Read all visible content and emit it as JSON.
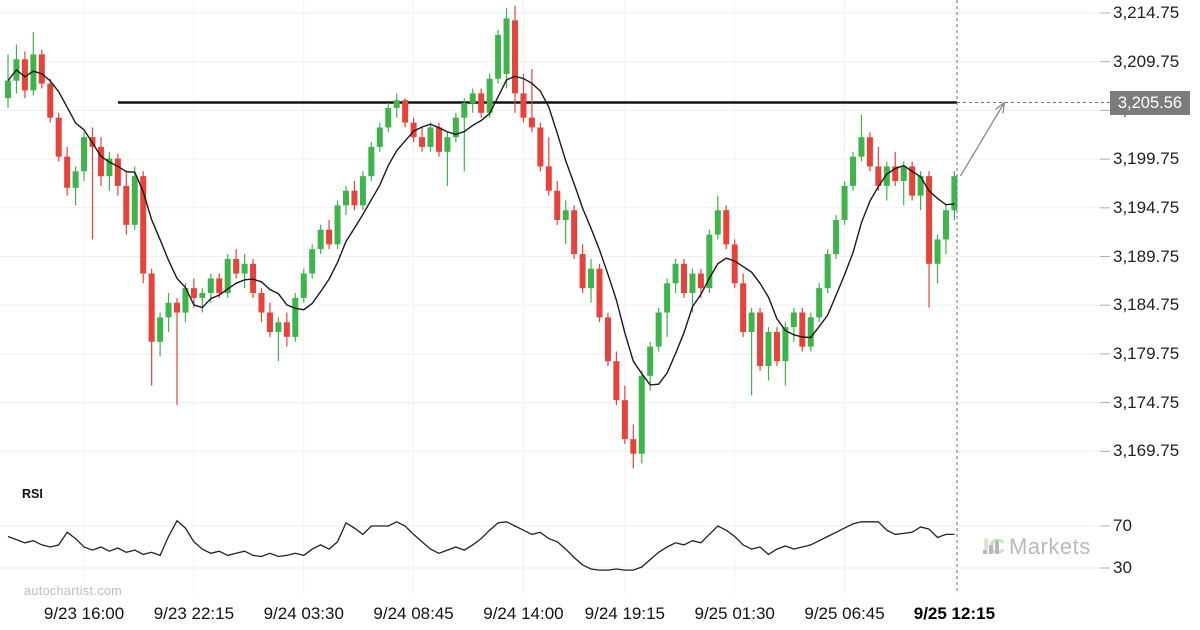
{
  "watermarks": {
    "autochartist": "autochartist.com",
    "icmarkets_ic": "IC",
    "icmarkets_markets": "Markets"
  },
  "indicator_label": "RSI",
  "price_tag": {
    "label": "3,205.56",
    "value": 3205.56
  },
  "chart_data": {
    "type": "candlestick",
    "title": "",
    "legend_position": "none",
    "grid": true,
    "price_axis_ticks": [
      {
        "label": "3,214.75",
        "value": 3214.75
      },
      {
        "label": "3,209.75",
        "value": 3209.75
      },
      {
        "label": "3,204.75",
        "value": 3204.75
      },
      {
        "label": "3,199.75",
        "value": 3199.75
      },
      {
        "label": "3,194.75",
        "value": 3194.75
      },
      {
        "label": "3,189.75",
        "value": 3189.75
      },
      {
        "label": "3,184.75",
        "value": 3184.75
      },
      {
        "label": "3,179.75",
        "value": 3179.75
      },
      {
        "label": "3,174.75",
        "value": 3174.75
      },
      {
        "label": "3,169.75",
        "value": 3169.75
      }
    ],
    "rsi_axis_ticks": [
      {
        "label": "70",
        "value": 70
      },
      {
        "label": "30",
        "value": 30
      }
    ],
    "time_ticks": [
      {
        "label": "9/23 16:00",
        "index": 9,
        "bold": false
      },
      {
        "label": "9/23 22:15",
        "index": 22,
        "bold": false
      },
      {
        "label": "9/24 03:30",
        "index": 35,
        "bold": false
      },
      {
        "label": "9/24 08:45",
        "index": 48,
        "bold": false
      },
      {
        "label": "9/24 14:00",
        "index": 61,
        "bold": false
      },
      {
        "label": "9/24 19:15",
        "index": 73,
        "bold": false
      },
      {
        "label": "9/25 01:30",
        "index": 86,
        "bold": false
      },
      {
        "label": "9/25 06:45",
        "index": 99,
        "bold": false
      },
      {
        "label": "9/25 12:15",
        "index": 112,
        "bold": true
      }
    ],
    "resistance": {
      "value": 3205.56,
      "start_index": 13
    },
    "projection_arrow": {
      "from_index": 112,
      "from_price": 3198.0,
      "to_price": 3205.56
    },
    "ma_period": 7,
    "ylim": [
      3167.5,
      3216.5
    ],
    "rsi_range": [
      0,
      100
    ],
    "colors": {
      "up": "#3db54a",
      "down": "#e9423a",
      "ma": "#1a1a1a",
      "resistance": "#141414",
      "rsi": "#222222",
      "grid_h": "#f6eded",
      "grid_v": "#f2f2f2",
      "tick": "#b0b0b0",
      "dashed": "#6e6e6e",
      "arrow": "#8a8a8a",
      "tag_bg": "#7b7b7b"
    },
    "candles": [
      [
        3206.0,
        3210.5,
        3205.0,
        3207.8
      ],
      [
        3207.8,
        3211.5,
        3206.5,
        3210.0
      ],
      [
        3210.0,
        3210.8,
        3206.0,
        3206.8
      ],
      [
        3206.8,
        3212.8,
        3206.3,
        3210.5
      ],
      [
        3210.5,
        3211.0,
        3207.0,
        3207.5
      ],
      [
        3207.5,
        3208.0,
        3203.5,
        3204.0
      ],
      [
        3204.0,
        3204.5,
        3199.5,
        3200.0
      ],
      [
        3200.0,
        3201.0,
        3196.0,
        3196.8
      ],
      [
        3196.8,
        3199.0,
        3195.0,
        3198.5
      ],
      [
        3198.5,
        3202.5,
        3197.5,
        3202.0
      ],
      [
        3202.0,
        3203.0,
        3191.5,
        3201.0
      ],
      [
        3201.0,
        3202.0,
        3197.0,
        3198.0
      ],
      [
        3198.0,
        3200.5,
        3196.5,
        3199.8
      ],
      [
        3199.8,
        3200.3,
        3196.0,
        3197.0
      ],
      [
        3197.0,
        3198.5,
        3192.0,
        3193.0
      ],
      [
        3193.0,
        3199.0,
        3192.5,
        3198.0
      ],
      [
        3198.0,
        3198.5,
        3187.0,
        3188.0
      ],
      [
        3188.0,
        3188.5,
        3176.5,
        3181.0
      ],
      [
        3181.0,
        3184.0,
        3179.5,
        3183.5
      ],
      [
        3183.5,
        3186.0,
        3182.0,
        3185.0
      ],
      [
        3185.0,
        3185.5,
        3174.5,
        3184.0
      ],
      [
        3184.0,
        3187.0,
        3183.0,
        3186.5
      ],
      [
        3186.5,
        3187.5,
        3184.5,
        3185.5
      ],
      [
        3185.5,
        3186.5,
        3184.0,
        3186.0
      ],
      [
        3186.0,
        3188.0,
        3185.0,
        3187.5
      ],
      [
        3187.5,
        3188.0,
        3185.5,
        3186.0
      ],
      [
        3186.0,
        3190.0,
        3185.5,
        3189.5
      ],
      [
        3189.5,
        3190.5,
        3187.5,
        3188.0
      ],
      [
        3188.0,
        3190.0,
        3186.5,
        3189.0
      ],
      [
        3189.0,
        3189.5,
        3185.5,
        3186.0
      ],
      [
        3186.0,
        3186.5,
        3183.0,
        3184.0
      ],
      [
        3184.0,
        3185.0,
        3181.5,
        3182.0
      ],
      [
        3182.0,
        3183.5,
        3179.0,
        3183.0
      ],
      [
        3183.0,
        3184.0,
        3180.5,
        3181.5
      ],
      [
        3181.5,
        3186.0,
        3181.0,
        3185.5
      ],
      [
        3185.5,
        3188.5,
        3185.0,
        3188.0
      ],
      [
        3188.0,
        3191.0,
        3187.5,
        3190.5
      ],
      [
        3190.5,
        3193.0,
        3190.0,
        3192.5
      ],
      [
        3192.5,
        3193.5,
        3190.5,
        3191.0
      ],
      [
        3191.0,
        3195.5,
        3190.5,
        3195.0
      ],
      [
        3195.0,
        3197.0,
        3194.0,
        3196.5
      ],
      [
        3196.5,
        3197.5,
        3194.5,
        3195.0
      ],
      [
        3195.0,
        3198.5,
        3194.5,
        3198.0
      ],
      [
        3198.0,
        3201.5,
        3197.5,
        3201.0
      ],
      [
        3201.0,
        3203.5,
        3200.5,
        3203.0
      ],
      [
        3203.0,
        3205.5,
        3202.5,
        3205.0
      ],
      [
        3205.0,
        3206.5,
        3204.0,
        3205.8
      ],
      [
        3205.8,
        3206.0,
        3203.0,
        3203.5
      ],
      [
        3203.5,
        3204.0,
        3201.5,
        3202.0
      ],
      [
        3202.0,
        3203.0,
        3200.5,
        3201.0
      ],
      [
        3201.0,
        3203.5,
        3200.5,
        3203.0
      ],
      [
        3203.0,
        3203.5,
        3200.0,
        3200.5
      ],
      [
        3200.5,
        3202.5,
        3197.0,
        3202.0
      ],
      [
        3202.0,
        3204.5,
        3201.5,
        3204.0
      ],
      [
        3204.0,
        3206.0,
        3198.5,
        3205.5
      ],
      [
        3205.5,
        3207.0,
        3204.5,
        3206.5
      ],
      [
        3206.5,
        3207.0,
        3204.0,
        3204.5
      ],
      [
        3204.5,
        3208.5,
        3204.0,
        3208.0
      ],
      [
        3208.0,
        3213.0,
        3207.5,
        3212.5
      ],
      [
        3208.5,
        3215.3,
        3207.0,
        3214.2
      ],
      [
        3214.0,
        3215.5,
        3204.5,
        3206.5
      ],
      [
        3206.5,
        3208.5,
        3203.5,
        3204.0
      ],
      [
        3204.0,
        3209.0,
        3202.5,
        3203.0
      ],
      [
        3203.0,
        3203.5,
        3198.5,
        3199.0
      ],
      [
        3199.0,
        3202.0,
        3196.0,
        3196.5
      ],
      [
        3196.5,
        3197.5,
        3193.0,
        3193.5
      ],
      [
        3193.5,
        3195.5,
        3191.0,
        3194.5
      ],
      [
        3194.5,
        3195.0,
        3189.5,
        3190.0
      ],
      [
        3190.0,
        3191.0,
        3186.0,
        3186.5
      ],
      [
        3186.5,
        3189.5,
        3185.0,
        3188.5
      ],
      [
        3188.5,
        3189.0,
        3183.0,
        3183.5
      ],
      [
        3183.5,
        3184.0,
        3178.5,
        3179.0
      ],
      [
        3179.0,
        3180.0,
        3174.5,
        3175.0
      ],
      [
        3175.0,
        3176.5,
        3170.5,
        3171.0
      ],
      [
        3171.0,
        3172.5,
        3168.0,
        3169.5
      ],
      [
        3169.5,
        3178.0,
        3168.5,
        3177.5
      ],
      [
        3177.5,
        3181.0,
        3176.0,
        3180.5
      ],
      [
        3180.5,
        3184.5,
        3180.0,
        3184.0
      ],
      [
        3184.0,
        3187.5,
        3181.5,
        3187.0
      ],
      [
        3187.0,
        3189.5,
        3186.0,
        3189.0
      ],
      [
        3189.0,
        3189.5,
        3185.5,
        3186.0
      ],
      [
        3186.0,
        3188.5,
        3184.0,
        3188.0
      ],
      [
        3188.0,
        3188.5,
        3185.5,
        3186.5
      ],
      [
        3186.5,
        3192.5,
        3186.0,
        3192.0
      ],
      [
        3192.0,
        3196.0,
        3191.5,
        3194.5
      ],
      [
        3194.5,
        3195.0,
        3190.5,
        3191.0
      ],
      [
        3191.0,
        3191.5,
        3186.5,
        3187.0
      ],
      [
        3187.0,
        3188.0,
        3181.5,
        3182.0
      ],
      [
        3182.0,
        3184.5,
        3175.5,
        3184.0
      ],
      [
        3184.0,
        3184.5,
        3178.0,
        3178.5
      ],
      [
        3178.5,
        3182.5,
        3177.0,
        3182.0
      ],
      [
        3182.0,
        3182.5,
        3178.5,
        3179.0
      ],
      [
        3179.0,
        3183.0,
        3176.5,
        3182.5
      ],
      [
        3182.5,
        3184.5,
        3181.0,
        3184.0
      ],
      [
        3184.0,
        3184.5,
        3180.0,
        3180.5
      ],
      [
        3180.5,
        3184.0,
        3180.0,
        3183.5
      ],
      [
        3183.5,
        3187.0,
        3183.0,
        3186.5
      ],
      [
        3186.5,
        3190.5,
        3186.0,
        3190.0
      ],
      [
        3190.0,
        3194.0,
        3189.5,
        3193.5
      ],
      [
        3193.5,
        3197.5,
        3193.0,
        3197.0
      ],
      [
        3197.0,
        3200.5,
        3196.5,
        3200.0
      ],
      [
        3200.0,
        3204.3,
        3199.5,
        3202.0
      ],
      [
        3202.0,
        3202.5,
        3198.5,
        3199.0
      ],
      [
        3199.0,
        3201.0,
        3196.5,
        3197.0
      ],
      [
        3197.0,
        3199.5,
        3195.5,
        3199.0
      ],
      [
        3199.0,
        3200.5,
        3197.0,
        3197.5
      ],
      [
        3197.5,
        3199.5,
        3195.0,
        3199.0
      ],
      [
        3199.0,
        3199.5,
        3195.5,
        3196.0
      ],
      [
        3196.0,
        3198.5,
        3194.5,
        3198.0
      ],
      [
        3198.0,
        3198.5,
        3184.5,
        3189.0
      ],
      [
        3189.0,
        3192.0,
        3187.0,
        3191.5
      ],
      [
        3191.5,
        3195.0,
        3190.0,
        3194.5
      ],
      [
        3194.5,
        3198.5,
        3193.5,
        3198.0
      ]
    ],
    "rsi": [
      60,
      57,
      54,
      56,
      52,
      50,
      52,
      64,
      58,
      50,
      47,
      50,
      46,
      49,
      45,
      47,
      43,
      45,
      42,
      60,
      75,
      68,
      55,
      48,
      44,
      46,
      42,
      44,
      46,
      42,
      41,
      44,
      41,
      42,
      44,
      42,
      48,
      52,
      48,
      55,
      73,
      68,
      62,
      70,
      70,
      70,
      74,
      70,
      62,
      55,
      48,
      44,
      47,
      50,
      47,
      52,
      58,
      66,
      73,
      74,
      70,
      66,
      62,
      64,
      58,
      55,
      48,
      40,
      33,
      29,
      28,
      28,
      29,
      28,
      28,
      31,
      38,
      45,
      50,
      54,
      52,
      56,
      54,
      62,
      70,
      66,
      60,
      52,
      48,
      50,
      43,
      48,
      51,
      48,
      50,
      52,
      56,
      60,
      64,
      68,
      72,
      74,
      74,
      74,
      66,
      62,
      63,
      64,
      69,
      67,
      59,
      62,
      62
    ]
  }
}
